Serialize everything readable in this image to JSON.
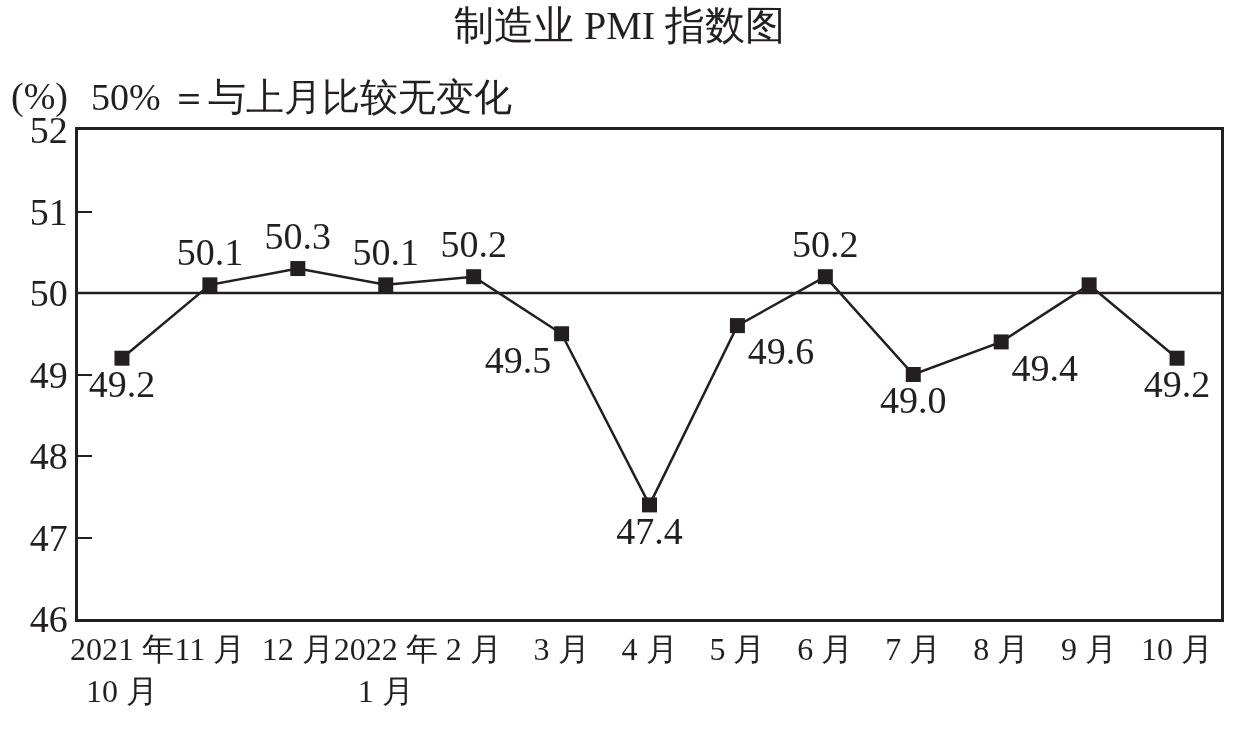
{
  "chart_data": {
    "type": "line",
    "title": "制造业 PMI 指数图",
    "ylabel": "(%)",
    "annotations": [
      "50% ＝与上月比较无变化"
    ],
    "categories": [
      "2021 年\n10 月",
      "11 月",
      "12 月",
      "2022 年\n1 月",
      "2 月",
      "3 月",
      "4 月",
      "5 月",
      "6 月",
      "7 月",
      "8 月",
      "9 月",
      "10 月"
    ],
    "series": [
      {
        "color": "#231f20",
        "values": [
          49.2,
          50.1,
          50.3,
          50.1,
          50.2,
          49.5,
          47.4,
          49.6,
          50.2,
          49.0,
          49.4,
          50.1,
          49.2
        ],
        "value_labels": [
          "49.2",
          "50.1",
          "50.3",
          "50.1",
          "50.2",
          "49.5",
          "47.4",
          "49.6",
          "50.2",
          "49.0",
          "49.4",
          null,
          "49.2"
        ]
      }
    ],
    "ylim": [
      46,
      52
    ],
    "yticks": [
      46,
      47,
      48,
      49,
      50,
      51,
      52
    ],
    "grid": false,
    "marker": "square",
    "line_style": "solid",
    "ref_lines": [
      {
        "axis": "y",
        "value": 50,
        "color": "#231f20"
      }
    ]
  }
}
